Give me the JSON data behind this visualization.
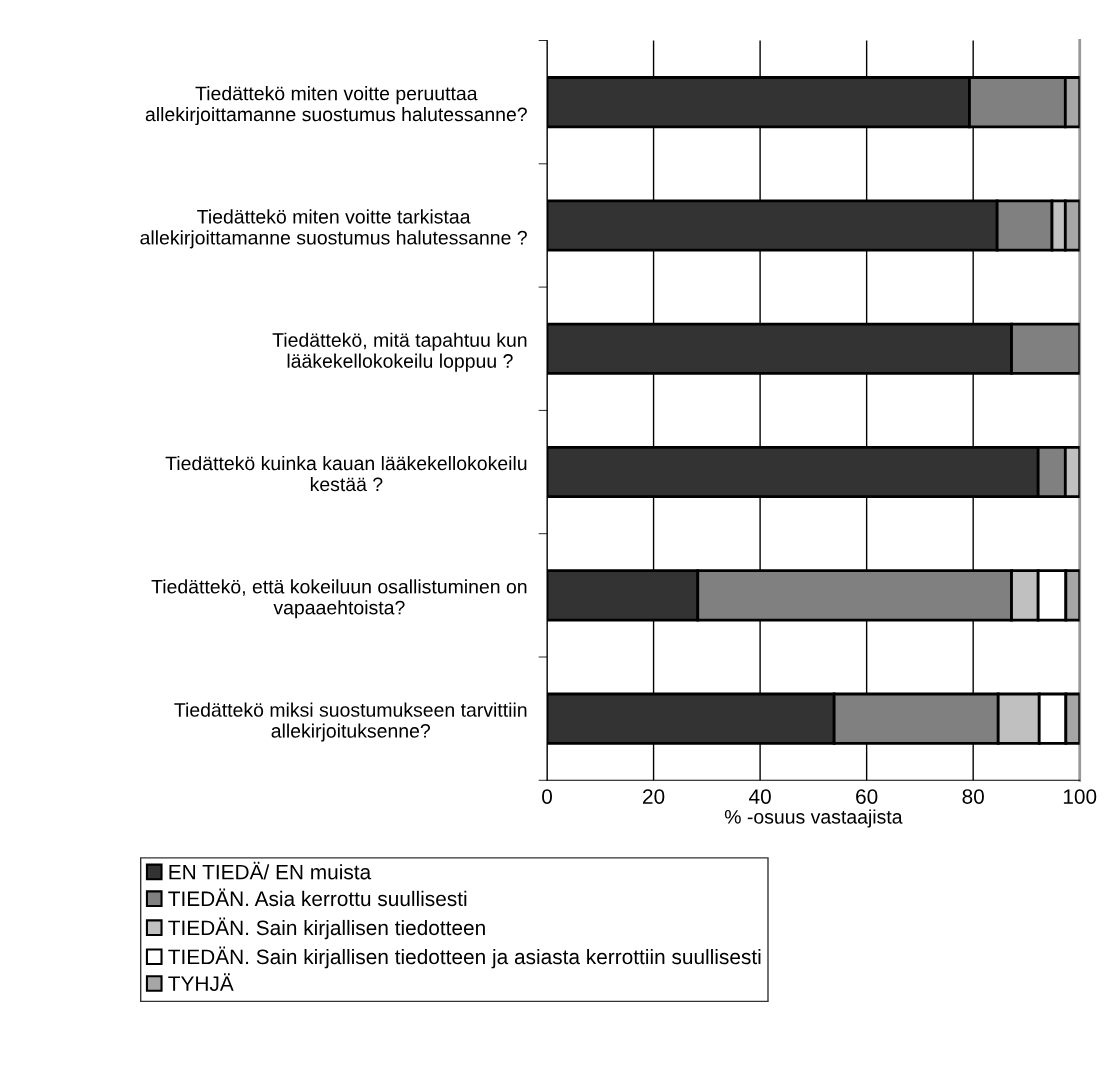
{
  "chart_data": {
    "type": "bar",
    "orientation": "horizontal",
    "stacked": true,
    "categories": [
      "Tiedättekö miten voitte peruuttaa\nallekirjoittamanne suostumus halutessanne?",
      "Tiedättekö miten voitte tarkistaa\nallekirjoittamanne suostumus halutessanne ?",
      "Tiedättekö, mitä tapahtuu kun\nlääkekellokokeilu loppuu ?",
      "Tiedättekö kuinka kauan lääkekellokokeilu\nkestää ?",
      "Tiedättekö, että kokeiluun osallistuminen on\nvapaaehtoista?",
      "Tiedättekö miksi suostumukseen tarvittiin\nallekirjoituksenne?"
    ],
    "series": [
      {
        "name": "EN TIEDÄ/ EN muista",
        "color": "#333333",
        "values": [
          79.3,
          84.5,
          87.2,
          92.2,
          28.3,
          53.9
        ]
      },
      {
        "name": "TIEDÄN. Asia kerrottu suullisesti",
        "color": "#808080",
        "values": [
          18.0,
          10.3,
          12.8,
          5.1,
          58.9,
          30.8
        ]
      },
      {
        "name": "TIEDÄN. Sain kirjallisen tiedotteen",
        "color": "#c0c0c0",
        "values": [
          0,
          2.5,
          0,
          2.7,
          5.0,
          7.7
        ]
      },
      {
        "name": "TIEDÄN. Sain kirjallisen tiedotteen ja asiasta kerrottiin suullisesti",
        "color": "#ffffff",
        "values": [
          0,
          0,
          0,
          0,
          5.2,
          5.0
        ]
      },
      {
        "name": "TYHJÄ",
        "color": "#a6a6a6",
        "values": [
          2.7,
          2.7,
          0,
          0,
          2.6,
          2.6
        ]
      }
    ],
    "xlim": [
      0,
      100
    ],
    "xticks": [
      0,
      20,
      40,
      60,
      80,
      100
    ],
    "xlabel": "% -osuus vastaajista",
    "grid": "x",
    "legend": "bottom"
  }
}
